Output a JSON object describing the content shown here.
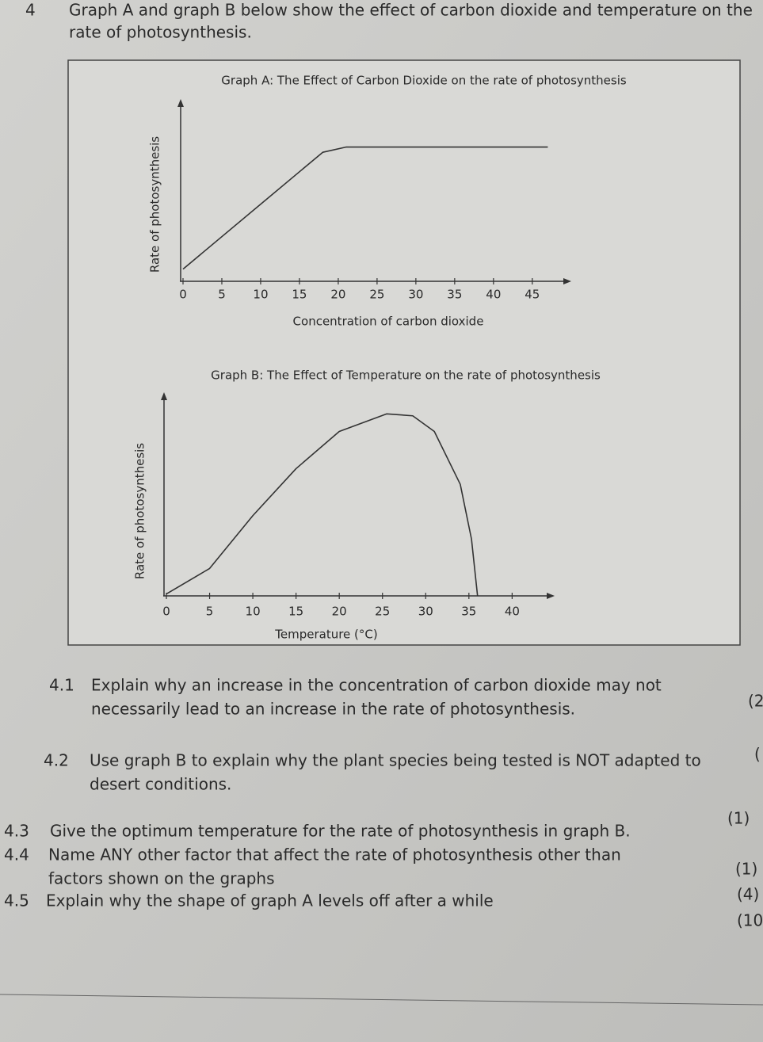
{
  "question": {
    "number": "4",
    "lines": [
      "Graph A and graph B below show the effect of carbon dioxide and temperature on the",
      "rate of photosynthesis."
    ]
  },
  "chart_data": [
    {
      "type": "line",
      "title": "Graph A: The Effect of Carbon Dioxide on the rate of photosynthesis",
      "xlabel": "Concentration of carbon dioxide",
      "ylabel": "Rate of photosynthesis",
      "x": [
        0,
        18,
        21,
        47
      ],
      "values": [
        0.7,
        7.4,
        7.7,
        7.7
      ],
      "xlim": [
        0,
        49
      ],
      "xticks": [
        0,
        5,
        10,
        15,
        20,
        25,
        30,
        35,
        40,
        45
      ],
      "ylim": [
        0,
        10
      ],
      "color": "#333333"
    },
    {
      "type": "line",
      "title": "Graph B: The Effect of Temperature on the rate of photosynthesis",
      "xlabel": "Temperature (°C)",
      "ylabel": "Rate of photosynthesis",
      "x": [
        0,
        5,
        10,
        15,
        20,
        25.5,
        28.5,
        31,
        34,
        35.3,
        36
      ],
      "values": [
        0.1,
        1.4,
        4.1,
        6.5,
        8.4,
        9.3,
        9.2,
        8.4,
        5.7,
        2.9,
        0
      ],
      "xlim": [
        0,
        44
      ],
      "xticks": [
        0,
        5,
        10,
        15,
        20,
        25,
        30,
        35,
        40
      ],
      "ylim": [
        0,
        10
      ],
      "color": "#333333"
    }
  ],
  "subquestions": [
    {
      "number": "4.1",
      "lines": [
        "Explain why an increase in the concentration of carbon dioxide may not",
        "necessarily lead to an increase in the rate of photosynthesis."
      ],
      "marks": "(2"
    },
    {
      "number": "4.2",
      "lines": [
        "Use graph B to explain why the plant species being tested is NOT adapted to",
        "desert conditions."
      ],
      "marks": "("
    },
    {
      "number": "4.3",
      "lines": [
        "Give the optimum temperature for the rate of photosynthesis in graph B."
      ],
      "marks": "(1)"
    },
    {
      "number": "4.4",
      "lines": [
        "Name ANY other factor that affect the rate of photosynthesis other than",
        "factors shown on the graphs"
      ],
      "marks": "(1)"
    },
    {
      "number": "4.5",
      "lines": [
        "Explain why the shape of graph A levels off after a while"
      ],
      "marks": "(4)"
    }
  ],
  "total": "(10"
}
